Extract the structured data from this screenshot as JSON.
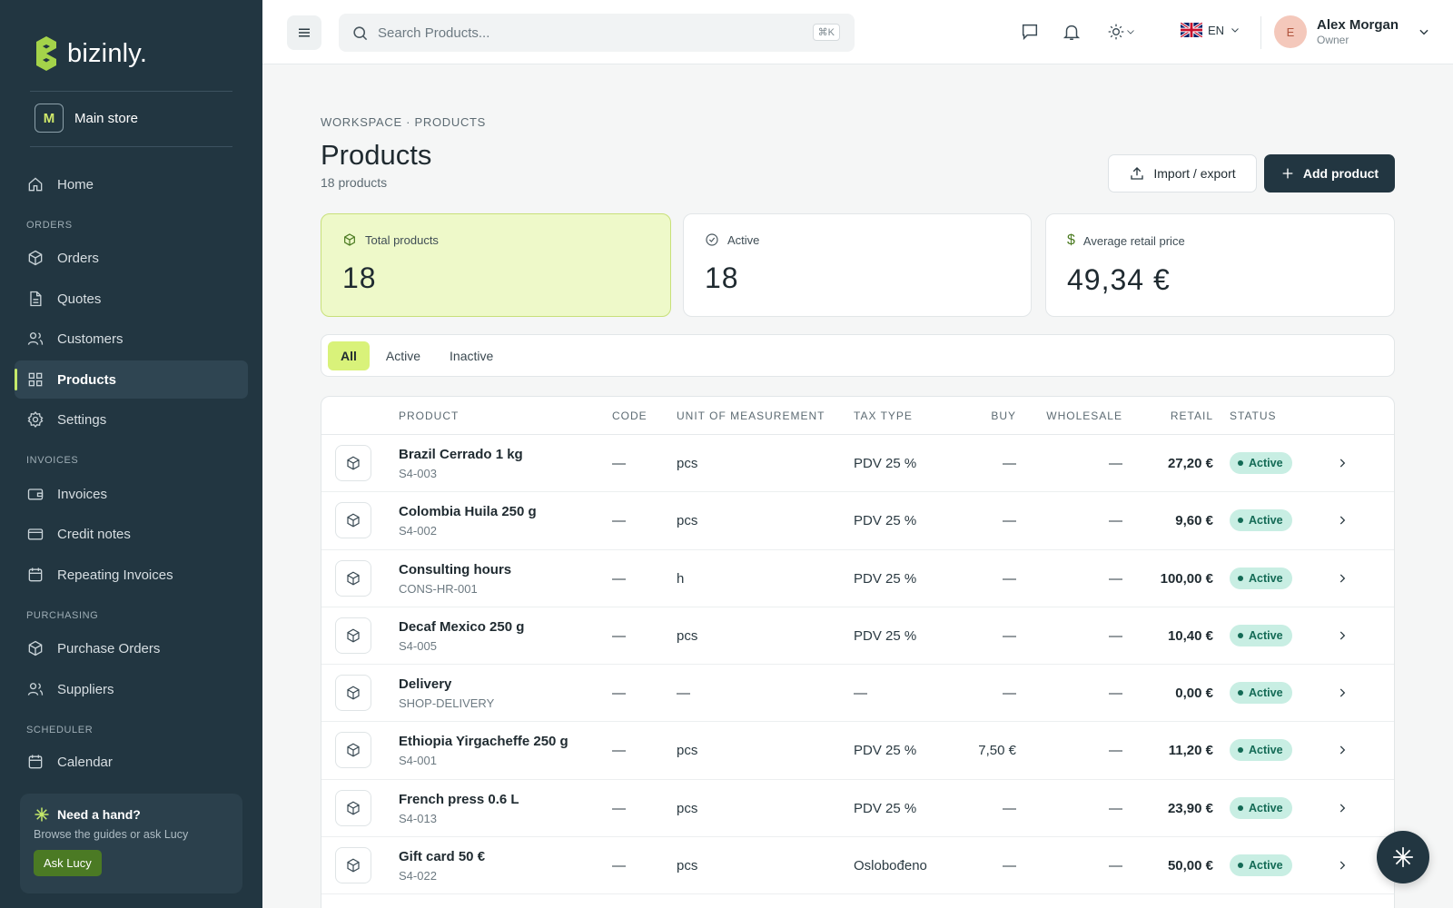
{
  "app": {
    "logo_text": "bizinly.",
    "store_initial": "M",
    "store_name": "Main store"
  },
  "sidebar": {
    "home": "Home",
    "sections": {
      "orders": "ORDERS",
      "invoices": "INVOICES",
      "purchasing": "PURCHASING",
      "scheduler": "SCHEDULER"
    },
    "items": {
      "orders": "Orders",
      "quotes": "Quotes",
      "customers": "Customers",
      "products": "Products",
      "settings": "Settings",
      "invoices": "Invoices",
      "credit_notes": "Credit notes",
      "repeating": "Repeating Invoices",
      "purchase_orders": "Purchase Orders",
      "suppliers": "Suppliers",
      "calendar": "Calendar"
    },
    "help": {
      "title": "Need a hand?",
      "subtitle": "Browse the guides or ask Lucy",
      "button": "Ask Lucy"
    }
  },
  "topbar": {
    "search_placeholder": "Search Products...",
    "search_shortcut": "⌘K",
    "language": "EN",
    "user": {
      "initial": "E",
      "name": "Alex Morgan",
      "role": "Owner"
    }
  },
  "page": {
    "breadcrumb": "WORKSPACE · PRODUCTS",
    "title": "Products",
    "subtitle": "18 products",
    "import_label": "Import / export",
    "add_label": "Add product"
  },
  "stats": {
    "total": {
      "label": "Total products",
      "value": "18"
    },
    "active": {
      "label": "Active",
      "value": "18"
    },
    "avg": {
      "label": "Average retail price",
      "value": "49,34 €"
    }
  },
  "tabs": {
    "all": "All",
    "active": "Active",
    "inactive": "Inactive"
  },
  "table": {
    "headers": {
      "product": "PRODUCT",
      "code": "CODE",
      "unit": "UNIT OF MEASUREMENT",
      "tax": "TAX TYPE",
      "buy": "BUY",
      "wholesale": "WHOLESALE",
      "retail": "RETAIL",
      "status": "STATUS"
    },
    "rows": [
      {
        "name": "Brazil Cerrado 1 kg",
        "sku": "S4-003",
        "code": "—",
        "unit": "pcs",
        "tax": "PDV 25 %",
        "buy": "—",
        "wholesale": "—",
        "retail": "27,20 €",
        "status": "Active"
      },
      {
        "name": "Colombia Huila 250 g",
        "sku": "S4-002",
        "code": "—",
        "unit": "pcs",
        "tax": "PDV 25 %",
        "buy": "—",
        "wholesale": "—",
        "retail": "9,60 €",
        "status": "Active"
      },
      {
        "name": "Consulting hours",
        "sku": "CONS-HR-001",
        "code": "—",
        "unit": "h",
        "tax": "PDV 25 %",
        "buy": "—",
        "wholesale": "—",
        "retail": "100,00 €",
        "status": "Active"
      },
      {
        "name": "Decaf Mexico 250 g",
        "sku": "S4-005",
        "code": "—",
        "unit": "pcs",
        "tax": "PDV 25 %",
        "buy": "—",
        "wholesale": "—",
        "retail": "10,40 €",
        "status": "Active"
      },
      {
        "name": "Delivery",
        "sku": "SHOP-DELIVERY",
        "code": "—",
        "unit": "—",
        "tax": "—",
        "buy": "—",
        "wholesale": "—",
        "retail": "0,00 €",
        "status": "Active"
      },
      {
        "name": "Ethiopia Yirgacheffe 250 g",
        "sku": "S4-001",
        "code": "—",
        "unit": "pcs",
        "tax": "PDV 25 %",
        "buy": "7,50 €",
        "wholesale": "—",
        "retail": "11,20 €",
        "status": "Active"
      },
      {
        "name": "French press 0.6 L",
        "sku": "S4-013",
        "code": "—",
        "unit": "pcs",
        "tax": "PDV 25 %",
        "buy": "—",
        "wholesale": "—",
        "retail": "23,90 €",
        "status": "Active"
      },
      {
        "name": "Gift card 50 €",
        "sku": "S4-022",
        "code": "—",
        "unit": "pcs",
        "tax": "Oslobođeno",
        "buy": "—",
        "wholesale": "—",
        "retail": "50,00 €",
        "status": "Active"
      }
    ]
  },
  "colors": {
    "sidebar": "#223641",
    "accent_lime": "#d9f27a",
    "active_badge": "#c8eee3"
  }
}
